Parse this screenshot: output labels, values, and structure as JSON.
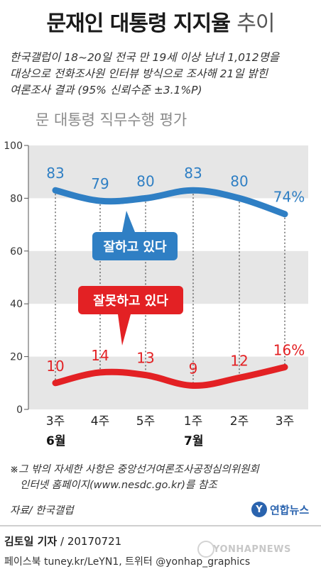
{
  "title": {
    "main": "문재인 대통령 지지율",
    "sub": "추이"
  },
  "description": [
    "한국갤럽이 18~20일 전국 만 19세 이상 남녀 1,012명을",
    "대상으로 전화조사원 인터뷰 방식으로 조사해 21일 밝힌",
    "여론조사 결과 (95% 신뢰수준 ±3.1%P)"
  ],
  "chart_data": {
    "type": "line",
    "title": "문 대통령 직무수행 평가",
    "categories": [
      "3주",
      "4주",
      "5주",
      "1주",
      "2주",
      "3주"
    ],
    "months": [
      {
        "label": "6월",
        "index": 0
      },
      {
        "label": "7월",
        "index": 3
      }
    ],
    "yticks": [
      0,
      20,
      40,
      60,
      80,
      100
    ],
    "ylim": [
      0,
      100
    ],
    "series": [
      {
        "name": "잘하고 있다",
        "values": [
          83,
          79,
          80,
          83,
          80,
          74
        ],
        "labels": [
          "83",
          "79",
          "80",
          "83",
          "80",
          "74%"
        ],
        "color": "#2f7fc4"
      },
      {
        "name": "잘못하고 있다",
        "values": [
          10,
          14,
          13,
          9,
          12,
          16
        ],
        "labels": [
          "10",
          "14",
          "13",
          "9",
          "12",
          "16%"
        ],
        "color": "#e32124"
      }
    ],
    "grid_band_color": "#e6e6e6"
  },
  "note": [
    "※그 밖의 자세한 사항은 중앙선거여론조사공정심의위원회",
    "인터넷 홈페이지(www.nesdc.go.kr)를 참조"
  ],
  "source": "자료/ 한국갤럽",
  "logo": {
    "text": "연합뉴스",
    "mark": "Y"
  },
  "byline": {
    "name": "김토일 기자",
    "date": "/ 20170721"
  },
  "social": "페이스북 tuney.kr/LeYN1, 트위터 @yonhap_graphics",
  "watermark": "YONHAPNEWS"
}
